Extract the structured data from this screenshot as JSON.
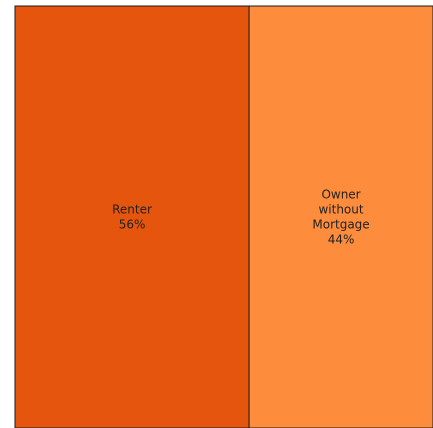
{
  "chart_data": {
    "type": "treemap",
    "title": "",
    "categories": [
      "Renter",
      "Owner without Mortgage"
    ],
    "values": [
      56,
      44
    ],
    "unit": "%",
    "items": [
      {
        "label_lines": [
          "Renter"
        ],
        "value_text": "56%",
        "value": 56,
        "color": "#e6550d"
      },
      {
        "label_lines": [
          "Owner",
          "without",
          "Mortgage"
        ],
        "value_text": "44%",
        "value": 44,
        "color": "#fd8d3c"
      }
    ],
    "border_color": "#1a1a1a"
  }
}
